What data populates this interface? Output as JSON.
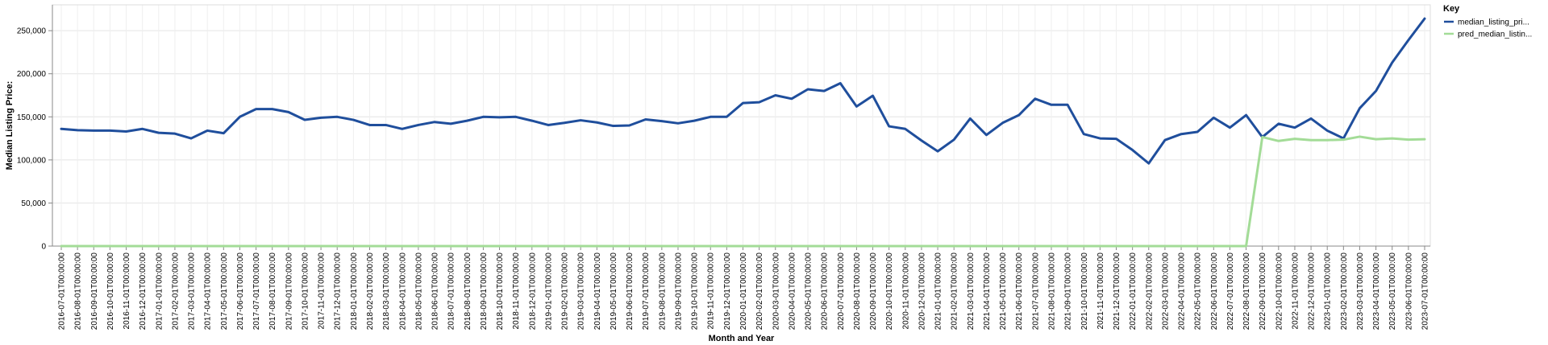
{
  "chart_data": {
    "type": "line",
    "xlabel": "Month and Year",
    "ylabel": "Median Listing Price:",
    "ylim": [
      0,
      280000
    ],
    "y_ticks": [
      0,
      50000,
      100000,
      150000,
      200000,
      250000
    ],
    "y_tick_labels": [
      "0",
      "50,000",
      "100,000",
      "150,000",
      "200,000",
      "250,000"
    ],
    "grid": true,
    "legend": {
      "title": "Key",
      "placement": "top-right"
    },
    "x": [
      "2016-07-01T00:00:00",
      "2016-08-01T00:00:00",
      "2016-09-01T00:00:00",
      "2016-10-01T00:00:00",
      "2016-11-01T00:00:00",
      "2016-12-01T00:00:00",
      "2017-01-01T00:00:00",
      "2017-02-01T00:00:00",
      "2017-03-01T00:00:00",
      "2017-04-01T00:00:00",
      "2017-05-01T00:00:00",
      "2017-06-01T00:00:00",
      "2017-07-01T00:00:00",
      "2017-08-01T00:00:00",
      "2017-09-01T00:00:00",
      "2017-10-01T00:00:00",
      "2017-11-01T00:00:00",
      "2017-12-01T00:00:00",
      "2018-01-01T00:00:00",
      "2018-02-01T00:00:00",
      "2018-03-01T00:00:00",
      "2018-04-01T00:00:00",
      "2018-05-01T00:00:00",
      "2018-06-01T00:00:00",
      "2018-07-01T00:00:00",
      "2018-08-01T00:00:00",
      "2018-09-01T00:00:00",
      "2018-10-01T00:00:00",
      "2018-11-01T00:00:00",
      "2018-12-01T00:00:00",
      "2019-01-01T00:00:00",
      "2019-02-01T00:00:00",
      "2019-03-01T00:00:00",
      "2019-04-01T00:00:00",
      "2019-05-01T00:00:00",
      "2019-06-01T00:00:00",
      "2019-07-01T00:00:00",
      "2019-08-01T00:00:00",
      "2019-09-01T00:00:00",
      "2019-10-01T00:00:00",
      "2019-11-01T00:00:00",
      "2019-12-01T00:00:00",
      "2020-01-01T00:00:00",
      "2020-02-01T00:00:00",
      "2020-03-01T00:00:00",
      "2020-04-01T00:00:00",
      "2020-05-01T00:00:00",
      "2020-06-01T00:00:00",
      "2020-07-01T00:00:00",
      "2020-08-01T00:00:00",
      "2020-09-01T00:00:00",
      "2020-10-01T00:00:00",
      "2020-11-01T00:00:00",
      "2020-12-01T00:00:00",
      "2021-01-01T00:00:00",
      "2021-02-01T00:00:00",
      "2021-03-01T00:00:00",
      "2021-04-01T00:00:00",
      "2021-05-01T00:00:00",
      "2021-06-01T00:00:00",
      "2021-07-01T00:00:00",
      "2021-08-01T00:00:00",
      "2021-09-01T00:00:00",
      "2021-10-01T00:00:00",
      "2021-11-01T00:00:00",
      "2021-12-01T00:00:00",
      "2022-01-01T00:00:00",
      "2022-02-01T00:00:00",
      "2022-03-01T00:00:00",
      "2022-04-01T00:00:00",
      "2022-05-01T00:00:00",
      "2022-06-01T00:00:00",
      "2022-07-01T00:00:00",
      "2022-08-01T00:00:00",
      "2022-09-01T00:00:00",
      "2022-10-01T00:00:00",
      "2022-11-01T00:00:00",
      "2022-12-01T00:00:00",
      "2023-01-01T00:00:00",
      "2023-02-01T00:00:00",
      "2023-03-01T00:00:00",
      "2023-04-01T00:00:00",
      "2023-05-01T00:00:00",
      "2023-06-01T00:00:00",
      "2023-07-01T00:00:00"
    ],
    "series": [
      {
        "name": "median_listing_pri...",
        "color": "#1f4e9c",
        "values": [
          136000,
          134500,
          134000,
          134000,
          133000,
          136000,
          131500,
          130500,
          125000,
          134000,
          131000,
          150000,
          159000,
          159000,
          155500,
          146500,
          149000,
          150000,
          146500,
          140500,
          140500,
          136000,
          140500,
          144000,
          142000,
          145500,
          150000,
          149500,
          150000,
          145500,
          140500,
          143000,
          146000,
          143500,
          139500,
          140000,
          147000,
          145000,
          142500,
          145500,
          150000,
          150000,
          166000,
          167000,
          175000,
          171000,
          182000,
          180000,
          189000,
          162000,
          174500,
          139000,
          136000,
          122500,
          110000,
          123500,
          148000,
          129000,
          143000,
          152000,
          171000,
          164000,
          164000,
          130000,
          125000,
          124500,
          111500,
          96000,
          123000,
          130000,
          132500,
          149000,
          137500,
          152000,
          126500,
          142000,
          137500,
          148000,
          134000,
          125000,
          160000,
          180000,
          213000,
          239000,
          264000
        ]
      },
      {
        "name": "pred_median_listin...",
        "color": "#a3dc97",
        "values": [
          0,
          0,
          0,
          0,
          0,
          0,
          0,
          0,
          0,
          0,
          0,
          0,
          0,
          0,
          0,
          0,
          0,
          0,
          0,
          0,
          0,
          0,
          0,
          0,
          0,
          0,
          0,
          0,
          0,
          0,
          0,
          0,
          0,
          0,
          0,
          0,
          0,
          0,
          0,
          0,
          0,
          0,
          0,
          0,
          0,
          0,
          0,
          0,
          0,
          0,
          0,
          0,
          0,
          0,
          0,
          0,
          0,
          0,
          0,
          0,
          0,
          0,
          0,
          0,
          0,
          0,
          0,
          0,
          0,
          0,
          0,
          0,
          0,
          0,
          126500,
          122000,
          124500,
          123000,
          123000,
          123500,
          127000,
          124000,
          125000,
          123500,
          124000
        ]
      }
    ]
  }
}
